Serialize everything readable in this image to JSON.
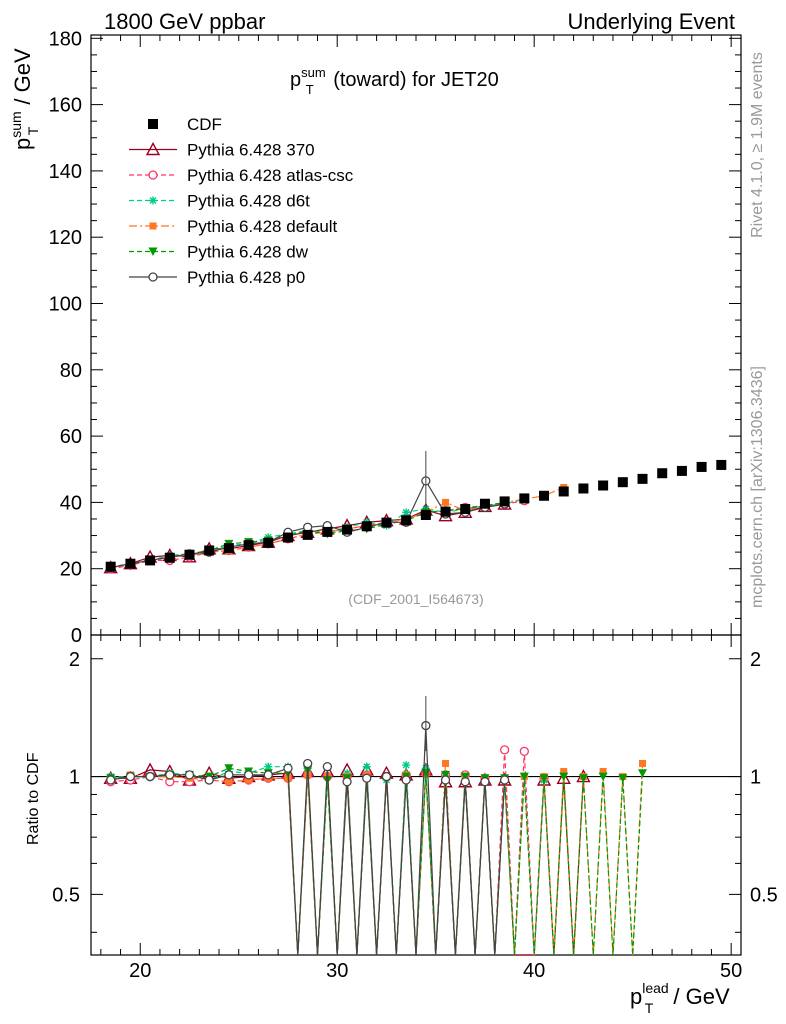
{
  "header": {
    "left": "1800 GeV ppbar",
    "right": "Underlying Event"
  },
  "side_labels": {
    "rivet": "Rivet 4.1.0, ≥ 1.9M events",
    "mcplots": "mcplots.cern.ch [arXiv:1306.3436]"
  },
  "chart_data": {
    "type": "scatter",
    "title": {
      "base": "p",
      "sup": "sum",
      "sub": "T",
      "rest": " (toward) for JET20"
    },
    "analysis_tag": "(CDF_2001_I564673)",
    "xlabel": {
      "base": "p",
      "sup": "lead",
      "sub": "T",
      "rest": " / GeV"
    },
    "ylabel_main": {
      "base": "p",
      "sup": "sum",
      "sub": "T",
      "rest": " / GeV"
    },
    "ylabel_ratio": "Ratio to CDF",
    "xlim": [
      17.5,
      50.5
    ],
    "ylim_main": [
      0,
      181
    ],
    "ylim_ratio": [
      0.35,
      2.3
    ],
    "x_ticks": [
      "20",
      "30",
      "40",
      "50"
    ],
    "y_ticks_main": [
      "0",
      "20",
      "40",
      "60",
      "80",
      "100",
      "120",
      "140",
      "160",
      "180"
    ],
    "y_ticks_ratio": [
      "0.5",
      "1",
      "2"
    ],
    "legend": {
      "position": "top-left",
      "entries": [
        "CDF",
        "Pythia 6.428 370",
        "Pythia 6.428 atlas-csc",
        "Pythia 6.428 d6t",
        "Pythia 6.428 default",
        "Pythia 6.428 dw",
        "Pythia 6.428 p0"
      ]
    },
    "data": {
      "name": "CDF",
      "color": "#000000",
      "x": [
        18.5,
        19.5,
        20.5,
        21.5,
        22.5,
        23.5,
        24.5,
        25.5,
        26.5,
        27.5,
        28.5,
        29.5,
        30.5,
        31.5,
        32.5,
        33.5,
        34.5,
        35.5,
        36.5,
        37.5,
        38.5,
        39.5,
        40.5,
        41.5,
        42.5,
        43.5,
        44.5,
        45.5,
        46.5,
        47.5,
        48.5,
        49.5
      ],
      "y": [
        20.6,
        21.5,
        22.5,
        23.3,
        24.2,
        25.5,
        26.2,
        27.1,
        27.8,
        29.4,
        30.2,
        31.1,
        31.8,
        32.8,
        33.9,
        34.6,
        36.2,
        37.2,
        38.0,
        39.6,
        40.3,
        41.2,
        42.0,
        43.3,
        44.2,
        45.1,
        46.1,
        47.1,
        48.8,
        49.5,
        50.7,
        51.3
      ]
    },
    "series": [
      {
        "name": "Pythia 6.428 370",
        "color": "#990022",
        "dash": "none",
        "marker": "triangle-open",
        "x": [
          18.5,
          19.5,
          20.5,
          21.5,
          22.5,
          23.5,
          24.5,
          25.5,
          26.5,
          27.5,
          28.5,
          29.5,
          30.5,
          31.5,
          32.5,
          33.5,
          34.5,
          35.5,
          36.5,
          37.5,
          38.5
        ],
        "y": [
          20.3,
          21.5,
          23.5,
          24.0,
          23.6,
          26.0,
          26.0,
          27.0,
          28.0,
          30.0,
          31.0,
          32.0,
          33.0,
          34.0,
          34.5,
          35.0,
          37.7,
          36.0,
          37.0,
          38.8,
          39.5
        ],
        "ratio_x": [
          18.5,
          19.5,
          20.5,
          21.5,
          22.5,
          23.5,
          24.5,
          25.5,
          26.5,
          27.5,
          28.5,
          29.5,
          30.5,
          31.5,
          32.5,
          33.5,
          34.5,
          35.5,
          36.5,
          37.5,
          38.5,
          39.5,
          40.5,
          41.5,
          42.5
        ],
        "ratio_y": [
          0.99,
          0.99,
          1.04,
          1.03,
          0.98,
          1.02,
          0.99,
          1.0,
          1.01,
          1.02,
          1.03,
          1.03,
          1.04,
          1.04,
          1.02,
          1.01,
          1.04,
          0.97,
          0.97,
          0.98,
          0.98,
          0.0,
          0.98,
          0.99,
          1.0
        ],
        "ratio_points": [
          true,
          true,
          true,
          true,
          true,
          true,
          true,
          true,
          true,
          true,
          true,
          true,
          true,
          true,
          true,
          true,
          true,
          true,
          true,
          true,
          true,
          false,
          true,
          true,
          true
        ]
      },
      {
        "name": "Pythia 6.428 atlas-csc",
        "color": "#ff3366",
        "dash": "5,3",
        "marker": "circle-open",
        "x": [
          18.5,
          19.5,
          20.5,
          21.5,
          22.5,
          23.5,
          24.5,
          25.5,
          26.5,
          27.5,
          28.5,
          29.5,
          30.5,
          31.5,
          32.5,
          33.5,
          34.5,
          35.5,
          36.5,
          37.5,
          38.5,
          39.5
        ],
        "y": [
          20.0,
          21.0,
          22.5,
          22.5,
          23.5,
          25.0,
          25.5,
          26.5,
          27.5,
          29.0,
          30.5,
          31.0,
          32.0,
          33.0,
          34.0,
          35.0,
          37.0,
          37.5,
          38.5,
          39.0,
          39.5,
          40.5
        ],
        "ratio_x": [
          18.5,
          19.5,
          20.5,
          21.5,
          22.5,
          23.5,
          24.5,
          25.5,
          26.5,
          27.5,
          28.5,
          29.5,
          30.5,
          31.5,
          32.5,
          33.5,
          34.5,
          35.5,
          36.5,
          37.5,
          38.5,
          39.5,
          40.5
        ],
        "ratio_y": [
          0.97,
          0.98,
          1.0,
          0.97,
          0.97,
          0.98,
          0.97,
          0.98,
          0.99,
          0.99,
          1.01,
          1.0,
          1.0,
          1.01,
          1.0,
          1.01,
          1.02,
          1.01,
          1.01,
          0.99,
          1.17,
          1.16,
          0.99
        ],
        "ratio_points": [
          true,
          true,
          true,
          true,
          true,
          true,
          true,
          true,
          true,
          true,
          true,
          true,
          true,
          true,
          true,
          true,
          true,
          true,
          true,
          true,
          true,
          true,
          true
        ]
      },
      {
        "name": "Pythia 6.428 d6t",
        "color": "#00cc88",
        "dash": "5,3",
        "marker": "star",
        "x": [
          18.5,
          19.5,
          20.5,
          21.5,
          22.5,
          23.5,
          24.5,
          25.5,
          26.5,
          27.5,
          28.5,
          29.5,
          30.5,
          31.5,
          32.5,
          33.5,
          34.5,
          35.5,
          36.5,
          37.5,
          38.5,
          39.5
        ],
        "y": [
          20.5,
          21.5,
          22.5,
          24.0,
          24.5,
          25.0,
          27.0,
          27.5,
          29.5,
          30.5,
          31.5,
          31.0,
          32.5,
          34.0,
          33.0,
          37.0,
          38.0,
          37.0,
          38.0,
          39.0,
          39.5,
          41.0
        ],
        "ratio_x": [
          18.5,
          19.5,
          20.5,
          21.5,
          22.5,
          23.5,
          24.5,
          25.5,
          26.5,
          27.5,
          28.5,
          29.5,
          30.5,
          31.5,
          32.5,
          33.5,
          34.5,
          35.5,
          36.5,
          37.5,
          38.5,
          39.5,
          40.5
        ],
        "ratio_y": [
          1.0,
          1.0,
          1.0,
          1.02,
          1.01,
          0.98,
          1.03,
          1.02,
          1.06,
          1.06,
          1.05,
          1.0,
          1.02,
          1.06,
          0.98,
          1.07,
          1.05,
          0.99,
          1.0,
          0.98,
          0.98,
          1.0,
          0.98
        ],
        "ratio_points": [
          true,
          true,
          true,
          true,
          true,
          true,
          true,
          true,
          true,
          true,
          true,
          true,
          true,
          true,
          true,
          true,
          true,
          true,
          true,
          true,
          true,
          true,
          true
        ]
      },
      {
        "name": "Pythia 6.428 default",
        "color": "#ff7722",
        "dash": "8,3,2,3",
        "marker": "square",
        "x": [
          18.5,
          19.5,
          20.5,
          21.5,
          22.5,
          23.5,
          24.5,
          25.5,
          26.5,
          27.5,
          28.5,
          29.5,
          30.5,
          31.5,
          32.5,
          33.5,
          34.5,
          35.5,
          36.5,
          37.5,
          38.5,
          39.5,
          40.5,
          41.5
        ],
        "y": [
          20.3,
          21.5,
          22.5,
          23.5,
          24.0,
          25.0,
          25.5,
          26.5,
          27.5,
          29.0,
          30.5,
          31.0,
          32.0,
          33.0,
          34.0,
          35.0,
          37.0,
          40.0,
          37.5,
          39.0,
          40.0,
          41.0,
          42.0,
          44.5
        ],
        "ratio_x": [
          18.5,
          19.5,
          20.5,
          21.5,
          22.5,
          23.5,
          24.5,
          25.5,
          26.5,
          27.5,
          28.5,
          29.5,
          30.5,
          31.5,
          32.5,
          33.5,
          34.5,
          35.5,
          36.5,
          37.5,
          38.5,
          39.5,
          40.5,
          41.5,
          42.5,
          43.5,
          44.5,
          45.5
        ],
        "ratio_y": [
          0.98,
          1.01,
          1.0,
          1.0,
          0.99,
          0.98,
          0.97,
          0.98,
          0.99,
          0.99,
          1.01,
          1.0,
          1.0,
          1.01,
          1.0,
          1.01,
          1.02,
          1.08,
          0.99,
          0.98,
          0.99,
          1.0,
          1.0,
          1.03,
          1.0,
          1.03,
          1.0,
          1.08
        ],
        "ratio_points": [
          true,
          true,
          true,
          true,
          true,
          true,
          true,
          true,
          true,
          true,
          true,
          true,
          true,
          true,
          true,
          true,
          true,
          true,
          true,
          true,
          true,
          true,
          true,
          true,
          true,
          true,
          true,
          true
        ]
      },
      {
        "name": "Pythia 6.428 dw",
        "color": "#009900",
        "dash": "5,3",
        "marker": "triangle-down",
        "x": [
          18.5,
          19.5,
          20.5,
          21.5,
          22.5,
          23.5,
          24.5,
          25.5,
          26.5,
          27.5,
          28.5,
          29.5,
          30.5,
          31.5,
          32.5,
          33.5,
          34.5,
          35.5,
          36.5,
          37.5,
          38.5
        ],
        "y": [
          20.5,
          21.5,
          22.5,
          23.5,
          24.5,
          25.5,
          27.5,
          28.0,
          28.5,
          30.0,
          31.5,
          30.5,
          31.5,
          32.0,
          33.5,
          34.5,
          37.0,
          37.5,
          38.0,
          39.0,
          40.0
        ],
        "ratio_x": [
          18.5,
          19.5,
          20.5,
          21.5,
          22.5,
          23.5,
          24.5,
          25.5,
          26.5,
          27.5,
          28.5,
          29.5,
          30.5,
          31.5,
          32.5,
          33.5,
          34.5,
          35.5,
          36.5,
          37.5,
          38.5,
          39.5,
          40.5,
          41.5,
          42.5,
          43.5,
          44.5,
          45.5
        ],
        "ratio_y": [
          0.99,
          1.0,
          1.0,
          1.01,
          1.01,
          1.0,
          1.05,
          1.03,
          1.02,
          1.02,
          1.04,
          0.98,
          0.99,
          0.98,
          0.99,
          1.0,
          1.02,
          1.01,
          1.0,
          0.99,
          0.99,
          1.0,
          0.99,
          1.0,
          0.99,
          1.0,
          0.99,
          1.02
        ],
        "ratio_points": [
          true,
          true,
          true,
          true,
          true,
          true,
          true,
          true,
          true,
          true,
          true,
          true,
          true,
          true,
          true,
          true,
          true,
          true,
          true,
          true,
          true,
          true,
          true,
          true,
          true,
          true,
          true,
          true
        ]
      },
      {
        "name": "Pythia 6.428 p0",
        "color": "#444444",
        "dash": "none",
        "marker": "circle-open",
        "x": [
          18.5,
          19.5,
          20.5,
          21.5,
          22.5,
          23.5,
          24.5,
          25.5,
          26.5,
          27.5,
          28.5,
          29.5,
          30.5,
          31.5,
          32.5,
          33.5,
          34.5,
          35.5,
          36.5,
          37.5,
          38.5
        ],
        "y": [
          20.3,
          21.5,
          22.5,
          23.5,
          24.5,
          25.0,
          26.5,
          27.5,
          28.0,
          31.0,
          32.5,
          33.0,
          31.0,
          32.5,
          34.0,
          34.0,
          46.5,
          36.5,
          37.0,
          38.5,
          39.5
        ],
        "ratio_x": [
          18.5,
          19.5,
          20.5,
          21.5,
          22.5,
          23.5,
          24.5,
          25.5,
          26.5,
          27.5,
          28.5,
          29.5,
          30.5,
          31.5,
          32.5,
          33.5,
          34.5,
          35.5,
          36.5,
          37.5,
          38.5
        ],
        "ratio_y": [
          0.98,
          1.0,
          1.0,
          1.01,
          1.01,
          0.98,
          1.01,
          1.01,
          1.01,
          1.05,
          1.08,
          1.06,
          0.97,
          0.99,
          1.0,
          0.98,
          1.35,
          0.98,
          0.97,
          0.97,
          0.98
        ],
        "ratio_points": [
          true,
          true,
          true,
          true,
          true,
          true,
          true,
          true,
          true,
          true,
          true,
          true,
          true,
          true,
          true,
          true,
          true,
          true,
          true,
          true,
          true
        ]
      }
    ]
  }
}
